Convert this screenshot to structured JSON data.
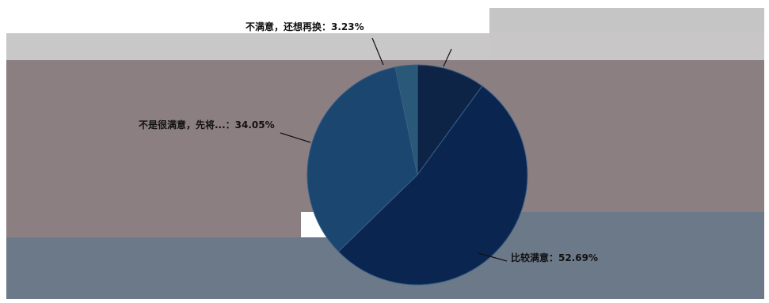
{
  "chart_data": {
    "type": "pie",
    "title": "",
    "slices": [
      {
        "label": "",
        "text": "",
        "value": 10.03,
        "color": "#0d2447"
      },
      {
        "label": "比较满意",
        "text": "比较满意：52.69%",
        "value": 52.69,
        "color": "#0a2650"
      },
      {
        "label": "不是很满意，先将...",
        "text": "不是很满意，先将...：34.05%",
        "value": 34.05,
        "color": "#1a4670"
      },
      {
        "label": "不满意，还想再换",
        "text": "不满意，还想再换：3.23%",
        "value": 3.23,
        "color": "#2a5878"
      }
    ],
    "legend": "none",
    "grid": false
  }
}
